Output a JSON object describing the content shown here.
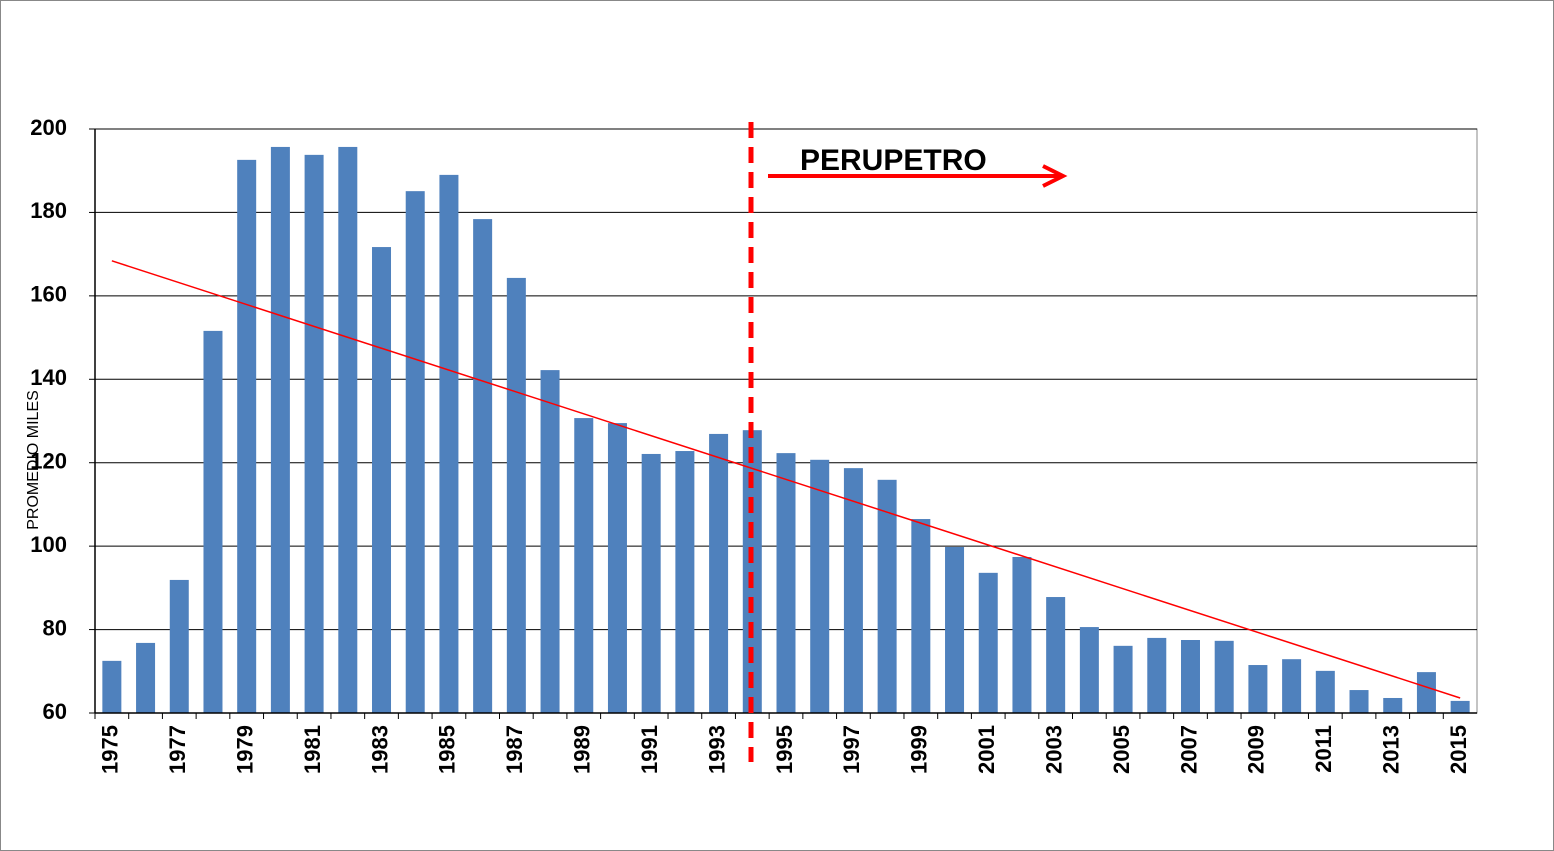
{
  "chart_data": {
    "type": "bar",
    "y_label": "PROMEDIO MILES",
    "categories": [
      "1975",
      null,
      "1977",
      null,
      "1979",
      null,
      "1981",
      null,
      "1983",
      null,
      "1985",
      null,
      "1987",
      null,
      "1989",
      null,
      "1991",
      null,
      "1993",
      null,
      "1995",
      null,
      "1997",
      null,
      "1999",
      null,
      "2001",
      null,
      "2003",
      null,
      "2005",
      null,
      "2007",
      null,
      "2009",
      null,
      "2011",
      null,
      "2013",
      null,
      "2015"
    ],
    "values": [
      72.5,
      76.8,
      91.9,
      151.6,
      192.6,
      195.7,
      193.8,
      195.7,
      171.7,
      185.1,
      189,
      178.4,
      164.3,
      142.2,
      130.7,
      129.5,
      122.1,
      122.8,
      126.9,
      127.8,
      122.3,
      120.7,
      118.7,
      115.9,
      106.5,
      99.8,
      93.6,
      97.4,
      87.8,
      80.6,
      76.1,
      78,
      77.5,
      77.3,
      71.5,
      72.9,
      70.1,
      65.5,
      63.6,
      69.8,
      62.9
    ],
    "color": "#4f81bd",
    "ylim": [
      60,
      200
    ],
    "yticks": [
      60,
      80,
      100,
      120,
      140,
      160,
      180,
      200
    ],
    "grid": true,
    "trendline": {
      "color": "#ff0000",
      "values": [
        168.4,
        63.6
      ]
    },
    "annotation": {
      "text": "PERUPETRO",
      "color": "#ff0000"
    }
  }
}
